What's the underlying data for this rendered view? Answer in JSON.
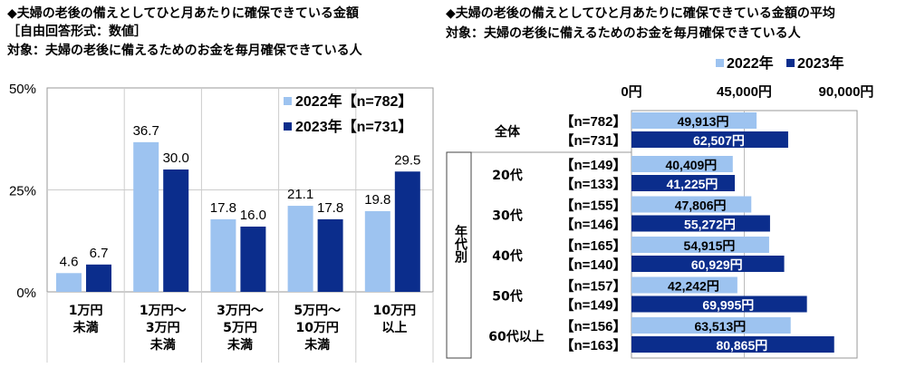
{
  "colors": {
    "y2022": "#9DC3F0",
    "y2023": "#0B2D8C"
  },
  "left": {
    "title": "◆夫婦の老後の備えとしてひと月あたりに確保できている金額",
    "subtitle": "［自由回答形式：数値］",
    "target": "対象：夫婦の老後に備えるためのお金を毎月確保できている人"
  },
  "right": {
    "title": "◆夫婦の老後の備えとしてひと月あたりに確保できている金額の平均",
    "target": "対象：夫婦の老後に備えるためのお金を毎月確保できている人",
    "group_label": "年代別"
  },
  "chart_data": [
    {
      "type": "bar",
      "categories": [
        "1万円\n未満",
        "1万円～\n3万円\n未満",
        "3万円～\n5万円\n未満",
        "5万円～\n10万円\n未満",
        "10万円\n以上"
      ],
      "yticks": [
        "0%",
        "25%",
        "50%"
      ],
      "ylim": [
        0,
        50
      ],
      "legend": "top-right",
      "grid": true,
      "series": [
        {
          "name": "2022年【n=782】",
          "values": [
            4.6,
            36.7,
            17.8,
            21.1,
            19.8
          ],
          "labels": [
            "4.6",
            "36.7",
            "17.8",
            "21.1",
            "19.8"
          ]
        },
        {
          "name": "2023年【n=731】",
          "values": [
            6.7,
            30.0,
            16.0,
            17.8,
            29.5
          ],
          "labels": [
            "6.7",
            "30.0",
            "16.0",
            "17.8",
            "29.5"
          ]
        }
      ]
    },
    {
      "type": "bar",
      "orientation": "horizontal",
      "xlim": [
        0,
        90000
      ],
      "xticks": [
        "0円",
        "45,000円",
        "90,000円"
      ],
      "legend": "top",
      "grid": true,
      "legend_names": [
        "2022年",
        "2023年"
      ],
      "categories": [
        "全体",
        "20代",
        "30代",
        "40代",
        "50代",
        "60代以上"
      ],
      "n": [
        [
          "【n=782】",
          "【n=731】"
        ],
        [
          "【n=149】",
          "【n=133】"
        ],
        [
          "【n=155】",
          "【n=146】"
        ],
        [
          "【n=165】",
          "【n=140】"
        ],
        [
          "【n=157】",
          "【n=149】"
        ],
        [
          "【n=156】",
          "【n=163】"
        ]
      ],
      "series": [
        {
          "name": "2022年",
          "values": [
            49913,
            40409,
            47806,
            54915,
            42242,
            63513
          ],
          "labels": [
            "49,913円",
            "40,409円",
            "47,806円",
            "54,915円",
            "42,242円",
            "63,513円"
          ]
        },
        {
          "name": "2023年",
          "values": [
            62507,
            41225,
            55272,
            60929,
            69995,
            80865
          ],
          "labels": [
            "62,507円",
            "41,225円",
            "55,272円",
            "60,929円",
            "69,995円",
            "80,865円"
          ]
        }
      ]
    }
  ]
}
